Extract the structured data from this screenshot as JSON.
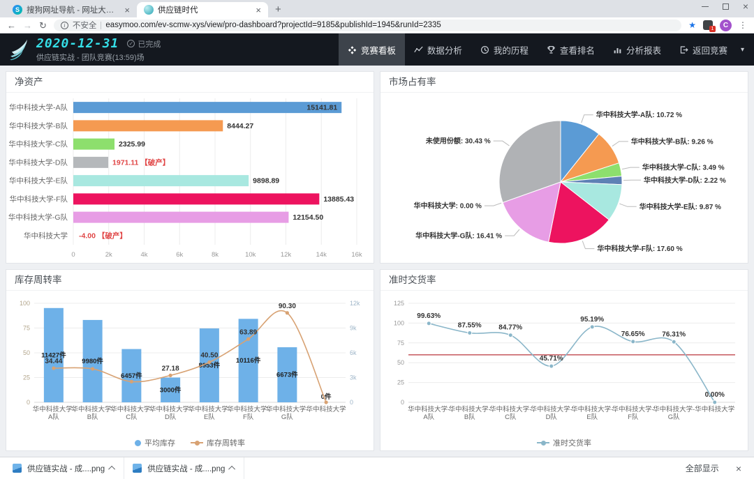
{
  "browser": {
    "tabs": [
      {
        "title": "搜狗网址导航 - 网址大全,实用..."
      },
      {
        "title": "供应链时代"
      }
    ],
    "security_label": "不安全",
    "url": "easymoo.com/ev-scmw-xys/view/pro-dashboard?projectId=9185&publishId=1945&runId=2335",
    "profile_initial": "C",
    "extension_badge": "1",
    "downloads": {
      "items": [
        {
          "filename": "供应链实战 - 成....png"
        },
        {
          "filename": "供应链实战 - 成....png"
        }
      ],
      "show_all": "全部显示"
    }
  },
  "icons": {
    "back": "←",
    "forward": "→",
    "refresh": "↻",
    "info": "i",
    "star": "★",
    "more": "⋮",
    "plus": "+",
    "caret": "▾",
    "check": "✓",
    "close": "×"
  },
  "header": {
    "date": "2020-12-31",
    "status": "已完成",
    "subtitle": "供应链实战 - 团队竞赛(13:59)场",
    "nav": [
      {
        "label": "竞赛看板"
      },
      {
        "label": "数据分析"
      },
      {
        "label": "我的历程"
      },
      {
        "label": "查看排名"
      },
      {
        "label": "分析报表"
      },
      {
        "label": "返回竞赛"
      }
    ]
  },
  "chart_data": [
    {
      "type": "bar",
      "orientation": "horizontal",
      "title": "净资产",
      "categories": [
        "华中科技大学-A队",
        "华中科技大学-B队",
        "华中科技大学-C队",
        "华中科技大学-D队",
        "华中科技大学-E队",
        "华中科技大学-F队",
        "华中科技大学-G队",
        "华中科技大学"
      ],
      "values": [
        15141.81,
        8444.27,
        2325.99,
        1971.11,
        9898.89,
        13885.43,
        12154.5,
        -4.0
      ],
      "value_labels": [
        "15141.81",
        "8444.27",
        "2325.99",
        "1971.11 【破产】",
        "9898.89",
        "13885.43",
        "12154.50",
        "-4.00 【破产】"
      ],
      "bankrupt": [
        false,
        false,
        false,
        true,
        false,
        false,
        false,
        true
      ],
      "colors": [
        "#5b9bd5",
        "#f59a51",
        "#8ddf6d",
        "#b5b8bb",
        "#a8e8e0",
        "#ed135f",
        "#e79de5",
        "#b5b8bb"
      ],
      "xlim": [
        0,
        16000
      ],
      "xtick_labels": [
        "0",
        "2k",
        "4k",
        "6k",
        "8k",
        "10k",
        "12k",
        "14k",
        "16k"
      ],
      "bankrupt_color": "#e04545"
    },
    {
      "type": "pie",
      "title": "市场占有率",
      "slices": [
        {
          "name": "华中科技大学-A队",
          "value": 10.72,
          "label": "10.72 %",
          "color": "#5b9bd5"
        },
        {
          "name": "华中科技大学-B队",
          "value": 9.26,
          "label": "9.26 %",
          "color": "#f59a51"
        },
        {
          "name": "华中科技大学-C队",
          "value": 3.49,
          "label": "3.49 %",
          "color": "#8ddf6d"
        },
        {
          "name": "华中科技大学-D队",
          "value": 2.22,
          "label": "2.22 %",
          "color": "#5e81b5"
        },
        {
          "name": "华中科技大学-E队",
          "value": 9.87,
          "label": "9.87 %",
          "color": "#a8e8e0"
        },
        {
          "name": "华中科技大学-F队",
          "value": 17.6,
          "label": "17.60 %",
          "color": "#ed135f"
        },
        {
          "name": "华中科技大学-G队",
          "value": 16.41,
          "label": "16.41 %",
          "color": "#e79de5"
        },
        {
          "name": "华中科技大学",
          "value": 0.0,
          "label": "0.00 %",
          "color": "#cccccc"
        },
        {
          "name": "未使用份额",
          "value": 30.43,
          "label": "30.43 %",
          "color": "#b0b2b5"
        }
      ]
    },
    {
      "type": "bar-line",
      "title": "库存周转率",
      "categories": [
        "华中科技大学-A队",
        "华中科技大学-B队",
        "华中科技大学-C队",
        "华中科技大学-D队",
        "华中科技大学-E队",
        "华中科技大学-F队",
        "华中科技大学-G队",
        "华中科技大学"
      ],
      "series": [
        {
          "name": "平均库存",
          "type": "bar",
          "axis": "right",
          "color": "#6eb1e8",
          "values": [
            11427,
            9980,
            6457,
            3000,
            8953,
            10116,
            6673,
            0
          ],
          "labels": [
            "11427件",
            "9980件",
            "6457件",
            "3000件",
            "8953件",
            "10116件",
            "6673件",
            "0件"
          ]
        },
        {
          "name": "库存周转率",
          "type": "line",
          "axis": "left",
          "color": "#d8a273",
          "values": [
            34.44,
            33.8,
            20.9,
            27.18,
            40.5,
            63.89,
            90.3,
            0
          ],
          "labels": [
            "34.44",
            "",
            "",
            "27.18",
            "40.50",
            "63.89",
            "90.30",
            ""
          ]
        }
      ],
      "left_ylim": [
        0,
        100
      ],
      "left_ticks": [
        "0",
        "25",
        "50",
        "75",
        "100"
      ],
      "right_ylim": [
        0,
        12000
      ],
      "right_ticks": [
        "0",
        "3k",
        "6k",
        "9k",
        "12k"
      ]
    },
    {
      "type": "line",
      "title": "准时交货率",
      "categories": [
        "华中科技大学-A队",
        "华中科技大学-B队",
        "华中科技大学-C队",
        "华中科技大学-D队",
        "华中科技大学-E队",
        "华中科技大学-F队",
        "华中科技大学-G队",
        "华中科技大学"
      ],
      "series": [
        {
          "name": "准时交货率",
          "type": "line",
          "color": "#8ab6c9",
          "values": [
            99.63,
            87.55,
            84.77,
            45.71,
            95.19,
            76.65,
            76.31,
            0.0
          ],
          "labels": [
            "99.63%",
            "87.55%",
            "84.77%",
            "45.71%",
            "95.19%",
            "76.65%",
            "76.31%",
            "0.00%"
          ]
        }
      ],
      "ylim": [
        0,
        125
      ],
      "yticks": [
        "0",
        "25",
        "50",
        "75",
        "100",
        "125"
      ],
      "ref_line": {
        "value": 60,
        "color": "#c4565c"
      }
    }
  ]
}
